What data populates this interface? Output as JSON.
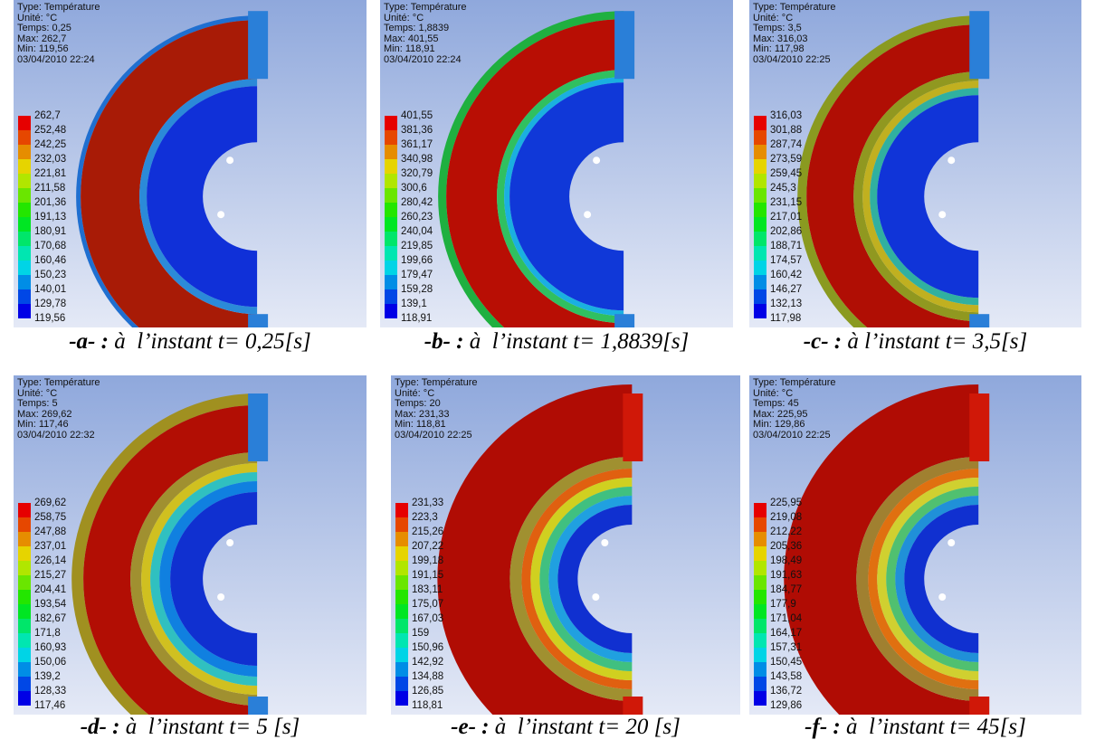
{
  "panels": [
    {
      "header": [
        "Type: Température",
        "Unité: °C",
        "Temps: 0,25",
        "Max: 262,7",
        "Min: 119,56",
        "03/04/2010 22:24"
      ],
      "legend": [
        "262,7",
        "252,48",
        "242,25",
        "232,03",
        "221,81",
        "211,58",
        "201,36",
        "191,13",
        "180,91",
        "170,68",
        "160,46",
        "150,23",
        "140,01",
        "129,78",
        "119,56"
      ],
      "caption": {
        "label": "-a- :",
        "text": "à  l’instant t= 0,25[s]"
      }
    },
    {
      "header": [
        "Type: Température",
        "Unité: °C",
        "Temps: 1,8839",
        "Max: 401,55",
        "Min: 118,91",
        "03/04/2010 22:24"
      ],
      "legend": [
        "401,55",
        "381,36",
        "361,17",
        "340,98",
        "320,79",
        "300,6",
        "280,42",
        "260,23",
        "240,04",
        "219,85",
        "199,66",
        "179,47",
        "159,28",
        "139,1",
        "118,91"
      ],
      "caption": {
        "label": "-b- :",
        "text": "à  l’instant t= 1,8839[s]"
      }
    },
    {
      "header": [
        "Type: Température",
        "Unité: °C",
        "Temps: 3,5",
        "Max: 316,03",
        "Min: 117,98",
        "03/04/2010 22:25"
      ],
      "legend": [
        "316,03",
        "301,88",
        "287,74",
        "273,59",
        "259,45",
        "245,3",
        "231,15",
        "217,01",
        "202,86",
        "188,71",
        "174,57",
        "160,42",
        "146,27",
        "132,13",
        "117,98"
      ],
      "caption": {
        "label": "-c- :",
        "text": "à l’instant t= 3,5[s]"
      }
    },
    {
      "header": [
        "Type: Température",
        "Unité: °C",
        "Temps: 5",
        "Max: 269,62",
        "Min: 117,46",
        "03/04/2010 22:32"
      ],
      "legend": [
        "269,62",
        "258,75",
        "247,88",
        "237,01",
        "226,14",
        "215,27",
        "204,41",
        "193,54",
        "182,67",
        "171,8",
        "160,93",
        "150,06",
        "139,2",
        "128,33",
        "117,46"
      ],
      "caption": {
        "label": "-d- :",
        "text": "à  l’instant t= 5 [s]"
      }
    },
    {
      "header": [
        "Type: Température",
        "Unité: °C",
        "Temps: 20",
        "Max: 231,33",
        "Min: 118,81",
        "03/04/2010 22:25"
      ],
      "legend": [
        "231,33",
        "223,3",
        "215,26",
        "207,22",
        "199,18",
        "191,15",
        "183,11",
        "175,07",
        "167,03",
        "159",
        "150,96",
        "142,92",
        "134,88",
        "126,85",
        "118,81"
      ],
      "caption": {
        "label": "-e- :",
        "text": "à  l’instant t= 20 [s]"
      }
    },
    {
      "header": [
        "Type: Température",
        "Unité: °C",
        "Temps: 45",
        "Max: 225,95",
        "Min: 129,86",
        "03/04/2010 22:25"
      ],
      "legend": [
        "225,95",
        "219,08",
        "212,22",
        "205,36",
        "198,49",
        "191,63",
        "184,77",
        "177,9",
        "171,04",
        "164,17",
        "157,31",
        "150,45",
        "143,58",
        "136,72",
        "129,86"
      ],
      "caption": {
        "label": "-f- :",
        "text": "à  l’instant t= 45[s]"
      }
    }
  ]
}
